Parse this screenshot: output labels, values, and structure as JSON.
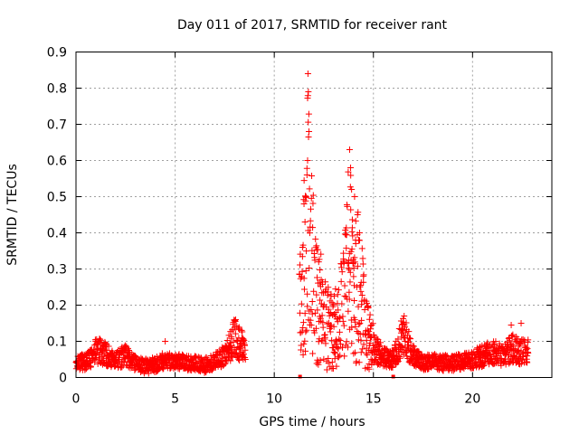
{
  "chart_data": {
    "type": "scatter",
    "title": "Day 011 of 2017, SRMTID for receiver rant",
    "xlabel": "GPS time / hours",
    "ylabel": "SRMTID / TECUs",
    "xlim": [
      0,
      24
    ],
    "ylim": [
      0,
      0.9
    ],
    "grid": true,
    "marker": "+",
    "color": "#ff0000",
    "x_ticks": [
      0,
      5,
      10,
      15,
      20
    ],
    "x_tick_labels": [
      "0",
      "5",
      "10",
      "15",
      "20"
    ],
    "y_ticks": [
      0,
      0.1,
      0.2,
      0.3,
      0.4,
      0.5,
      0.6,
      0.7,
      0.8,
      0.9
    ],
    "y_tick_labels": [
      "0",
      "0.1",
      "0.2",
      "0.3",
      "0.4",
      "0.5",
      "0.6",
      "0.7",
      "0.8",
      "0.9"
    ],
    "series": [
      {
        "name": "SRMTID",
        "anchors": [
          [
            0.0,
            0.045
          ],
          [
            0.5,
            0.04
          ],
          [
            1.0,
            0.075
          ],
          [
            1.5,
            0.065
          ],
          [
            2.0,
            0.05
          ],
          [
            2.5,
            0.06
          ],
          [
            3.0,
            0.04
          ],
          [
            3.5,
            0.03
          ],
          [
            4.0,
            0.035
          ],
          [
            4.5,
            0.05
          ],
          [
            5.0,
            0.045
          ],
          [
            5.5,
            0.04
          ],
          [
            6.0,
            0.04
          ],
          [
            6.5,
            0.035
          ],
          [
            7.0,
            0.045
          ],
          [
            7.5,
            0.06
          ],
          [
            8.0,
            0.11
          ],
          [
            8.3,
            0.09
          ],
          [
            8.5,
            0.08
          ],
          [
            11.3,
            0.2
          ],
          [
            11.5,
            0.3
          ],
          [
            11.7,
            0.45
          ],
          [
            11.9,
            0.3
          ],
          [
            12.1,
            0.25
          ],
          [
            12.5,
            0.15
          ],
          [
            13.0,
            0.12
          ],
          [
            13.5,
            0.2
          ],
          [
            13.8,
            0.35
          ],
          [
            14.0,
            0.28
          ],
          [
            14.3,
            0.25
          ],
          [
            14.6,
            0.12
          ],
          [
            15.0,
            0.08
          ],
          [
            15.5,
            0.06
          ],
          [
            16.0,
            0.05
          ],
          [
            16.5,
            0.12
          ],
          [
            17.0,
            0.06
          ],
          [
            17.5,
            0.04
          ],
          [
            18.0,
            0.045
          ],
          [
            18.5,
            0.04
          ],
          [
            19.0,
            0.04
          ],
          [
            19.5,
            0.045
          ],
          [
            20.0,
            0.05
          ],
          [
            20.5,
            0.06
          ],
          [
            21.0,
            0.07
          ],
          [
            21.5,
            0.06
          ],
          [
            22.0,
            0.08
          ],
          [
            22.5,
            0.07
          ],
          [
            22.8,
            0.075
          ]
        ],
        "gaps": [
          [
            8.55,
            11.25
          ]
        ],
        "peaks": [
          [
            11.7,
            0.84
          ],
          [
            11.72,
            0.79
          ],
          [
            11.75,
            0.68
          ],
          [
            11.68,
            0.6
          ],
          [
            11.6,
            0.5
          ],
          [
            11.55,
            0.43
          ],
          [
            11.5,
            0.48
          ],
          [
            11.65,
            0.56
          ],
          [
            13.8,
            0.63
          ],
          [
            13.85,
            0.58
          ],
          [
            13.9,
            0.52
          ],
          [
            14.05,
            0.5
          ],
          [
            14.2,
            0.45
          ],
          [
            14.3,
            0.4
          ],
          [
            14.1,
            0.38
          ],
          [
            16.55,
            0.17
          ],
          [
            4.5,
            0.1
          ],
          [
            8.05,
            0.16
          ],
          [
            22.45,
            0.15
          ],
          [
            21.95,
            0.145
          ]
        ],
        "isolated": [
          [
            11.3,
            0.0
          ],
          [
            16.0,
            0.0
          ]
        ]
      }
    ]
  }
}
